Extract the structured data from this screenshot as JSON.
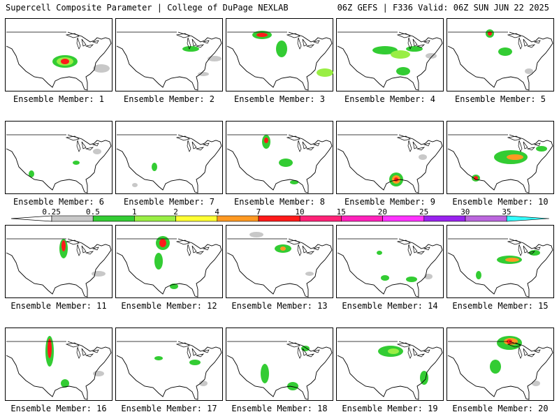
{
  "header": {
    "title_left": "Supercell Composite Parameter | College of DuPage NEXLAB",
    "title_right": "06Z GEFS | F336 Valid: 06Z SUN JUN 22 2025"
  },
  "colorbar": {
    "levels": [
      "0.25",
      "0.5",
      "1",
      "2",
      "4",
      "7",
      "10",
      "15",
      "20",
      "25",
      "30",
      "35"
    ],
    "colors": [
      "#c8c8c8",
      "#33cc33",
      "#99ee44",
      "#ffff33",
      "#ff9922",
      "#ff1a1a",
      "#ff2277",
      "#ff22bb",
      "#ff33ff",
      "#9922ee",
      "#bb66dd",
      "#33ffff"
    ]
  },
  "panels": [
    {
      "label": "Ensemble Member: 1"
    },
    {
      "label": "Ensemble Member: 2"
    },
    {
      "label": "Ensemble Member: 3"
    },
    {
      "label": "Ensemble Member: 4"
    },
    {
      "label": "Ensemble Member: 5"
    },
    {
      "label": "Ensemble Member: 6"
    },
    {
      "label": "Ensemble Member: 7"
    },
    {
      "label": "Ensemble Member: 8"
    },
    {
      "label": "Ensemble Member: 9"
    },
    {
      "label": "Ensemble Member: 10"
    },
    {
      "label": "Ensemble Member: 11"
    },
    {
      "label": "Ensemble Member: 12"
    },
    {
      "label": "Ensemble Member: 13"
    },
    {
      "label": "Ensemble Member: 14"
    },
    {
      "label": "Ensemble Member: 15"
    },
    {
      "label": "Ensemble Member: 16"
    },
    {
      "label": "Ensemble Member: 17"
    },
    {
      "label": "Ensemble Member: 18"
    },
    {
      "label": "Ensemble Member: 19"
    },
    {
      "label": "Ensemble Member: 20"
    }
  ]
}
